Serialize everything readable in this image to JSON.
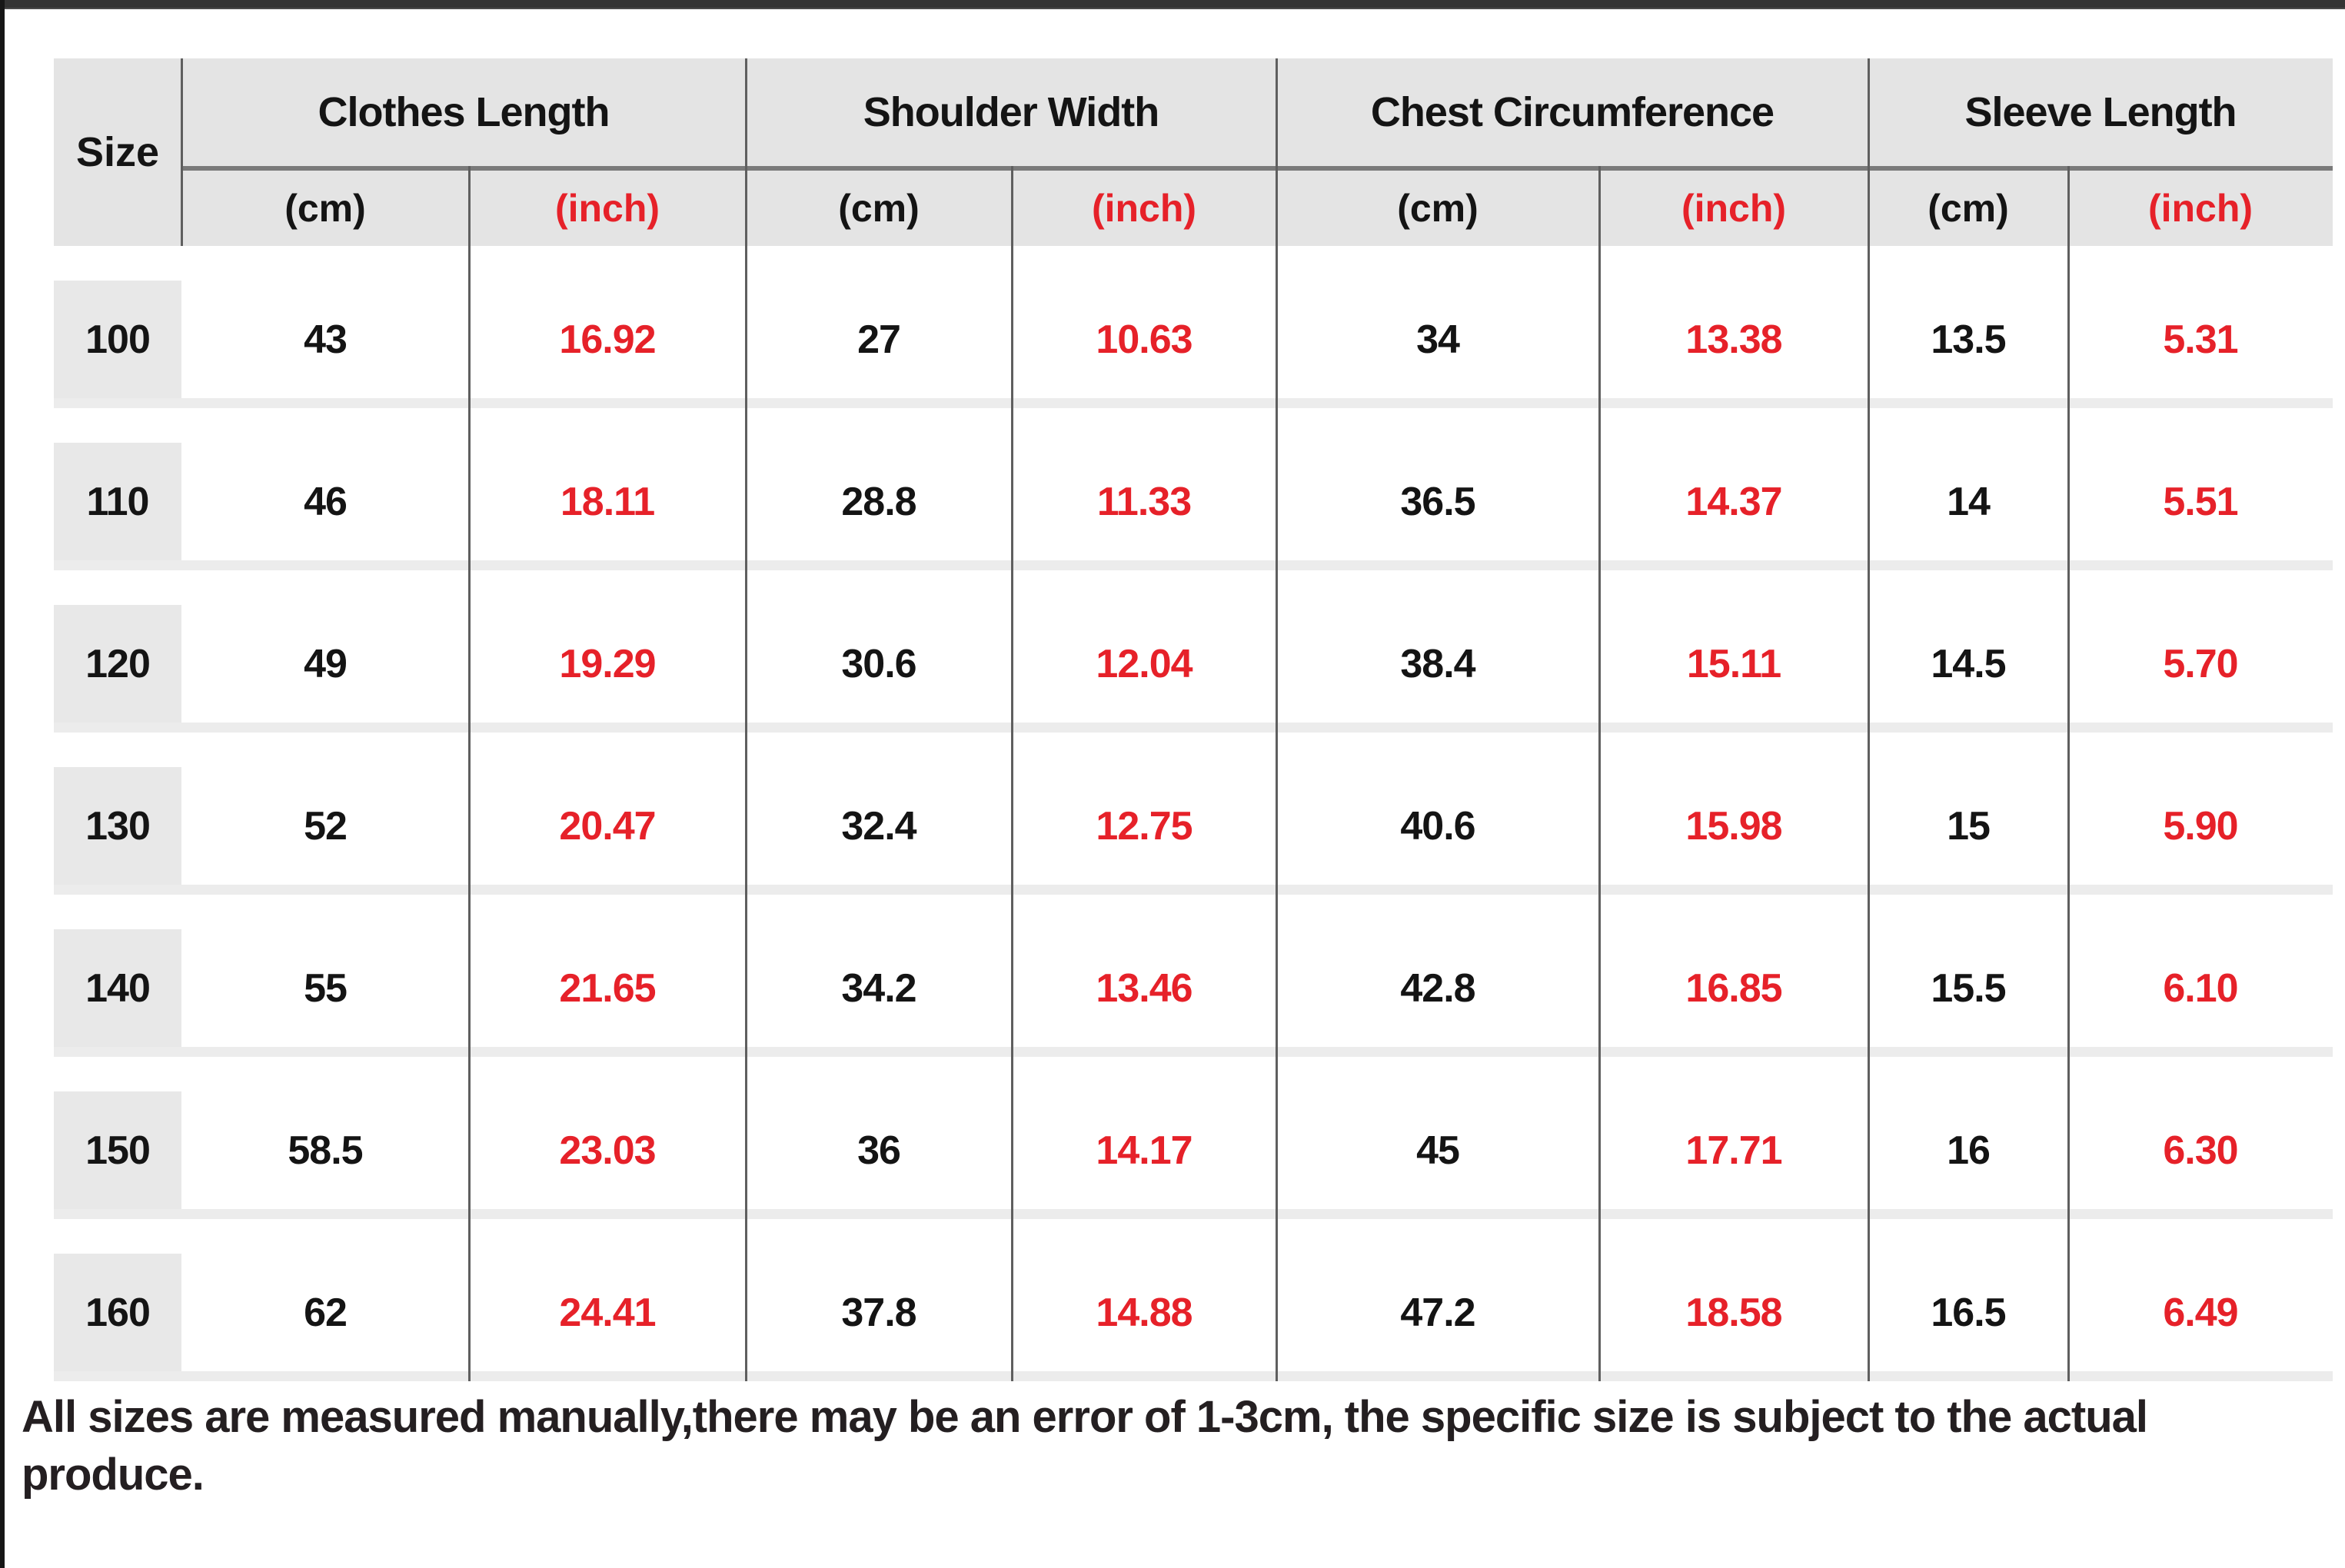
{
  "table": {
    "size_header": "Size",
    "units": {
      "cm": "(cm)",
      "inch": "(inch)"
    },
    "groups": [
      {
        "label": "Clothes Length"
      },
      {
        "label": "Shoulder Width"
      },
      {
        "label": "Chest Circumference"
      },
      {
        "label": "Sleeve Length"
      }
    ],
    "rows": [
      {
        "size": "100",
        "cells": [
          "43",
          "16.92",
          "27",
          "10.63",
          "34",
          "13.38",
          "13.5",
          "5.31"
        ]
      },
      {
        "size": "110",
        "cells": [
          "46",
          "18.11",
          "28.8",
          "11.33",
          "36.5",
          "14.37",
          "14",
          "5.51"
        ]
      },
      {
        "size": "120",
        "cells": [
          "49",
          "19.29",
          "30.6",
          "12.04",
          "38.4",
          "15.11",
          "14.5",
          "5.70"
        ]
      },
      {
        "size": "130",
        "cells": [
          "52",
          "20.47",
          "32.4",
          "12.75",
          "40.6",
          "15.98",
          "15",
          "5.90"
        ]
      },
      {
        "size": "140",
        "cells": [
          "55",
          "21.65",
          "34.2",
          "13.46",
          "42.8",
          "16.85",
          "15.5",
          "6.10"
        ]
      },
      {
        "size": "150",
        "cells": [
          "58.5",
          "23.03",
          "36",
          "14.17",
          "45",
          "17.71",
          "16",
          "6.30"
        ]
      },
      {
        "size": "160",
        "cells": [
          "62",
          "24.41",
          "37.8",
          "14.88",
          "47.2",
          "18.58",
          "16.5",
          "6.49"
        ]
      }
    ]
  },
  "footer": {
    "note": "All sizes are measured manually,there may be an error of 1-3cm, the specific size is subject to the actual produce."
  },
  "colors": {
    "accent_red": "#e62129",
    "header_gray": "#e4e4e4",
    "row_label_gray": "#e8e8e8",
    "separator_gray": "#ececec",
    "grid_line_dark": "#5f5f5f",
    "text_black": "#141414"
  },
  "chart_data": {
    "type": "table",
    "title": "Kids clothing size chart",
    "columns": [
      "Size",
      "Clothes Length (cm)",
      "Clothes Length (inch)",
      "Shoulder Width (cm)",
      "Shoulder Width (inch)",
      "Chest Circumference (cm)",
      "Chest Circumference (inch)",
      "Sleeve Length (cm)",
      "Sleeve Length (inch)"
    ],
    "rows": [
      [
        "100",
        43,
        16.92,
        27,
        10.63,
        34,
        13.38,
        13.5,
        5.31
      ],
      [
        "110",
        46,
        18.11,
        28.8,
        11.33,
        36.5,
        14.37,
        14,
        5.51
      ],
      [
        "120",
        49,
        19.29,
        30.6,
        12.04,
        38.4,
        15.11,
        14.5,
        5.7
      ],
      [
        "130",
        52,
        20.47,
        32.4,
        12.75,
        40.6,
        15.98,
        15,
        5.9
      ],
      [
        "140",
        55,
        21.65,
        34.2,
        13.46,
        42.8,
        16.85,
        15.5,
        6.1
      ],
      [
        "150",
        58.5,
        23.03,
        36,
        14.17,
        45,
        17.71,
        16,
        6.3
      ],
      [
        "160",
        62,
        24.41,
        37.8,
        14.88,
        47.2,
        18.58,
        16.5,
        6.49
      ]
    ],
    "annotations": [
      "All sizes are measured manually,there may be an error of 1-3cm, the specific size is subject to the actual produce."
    ],
    "legend_position": "none",
    "grid": "partial-vertical-lines"
  }
}
